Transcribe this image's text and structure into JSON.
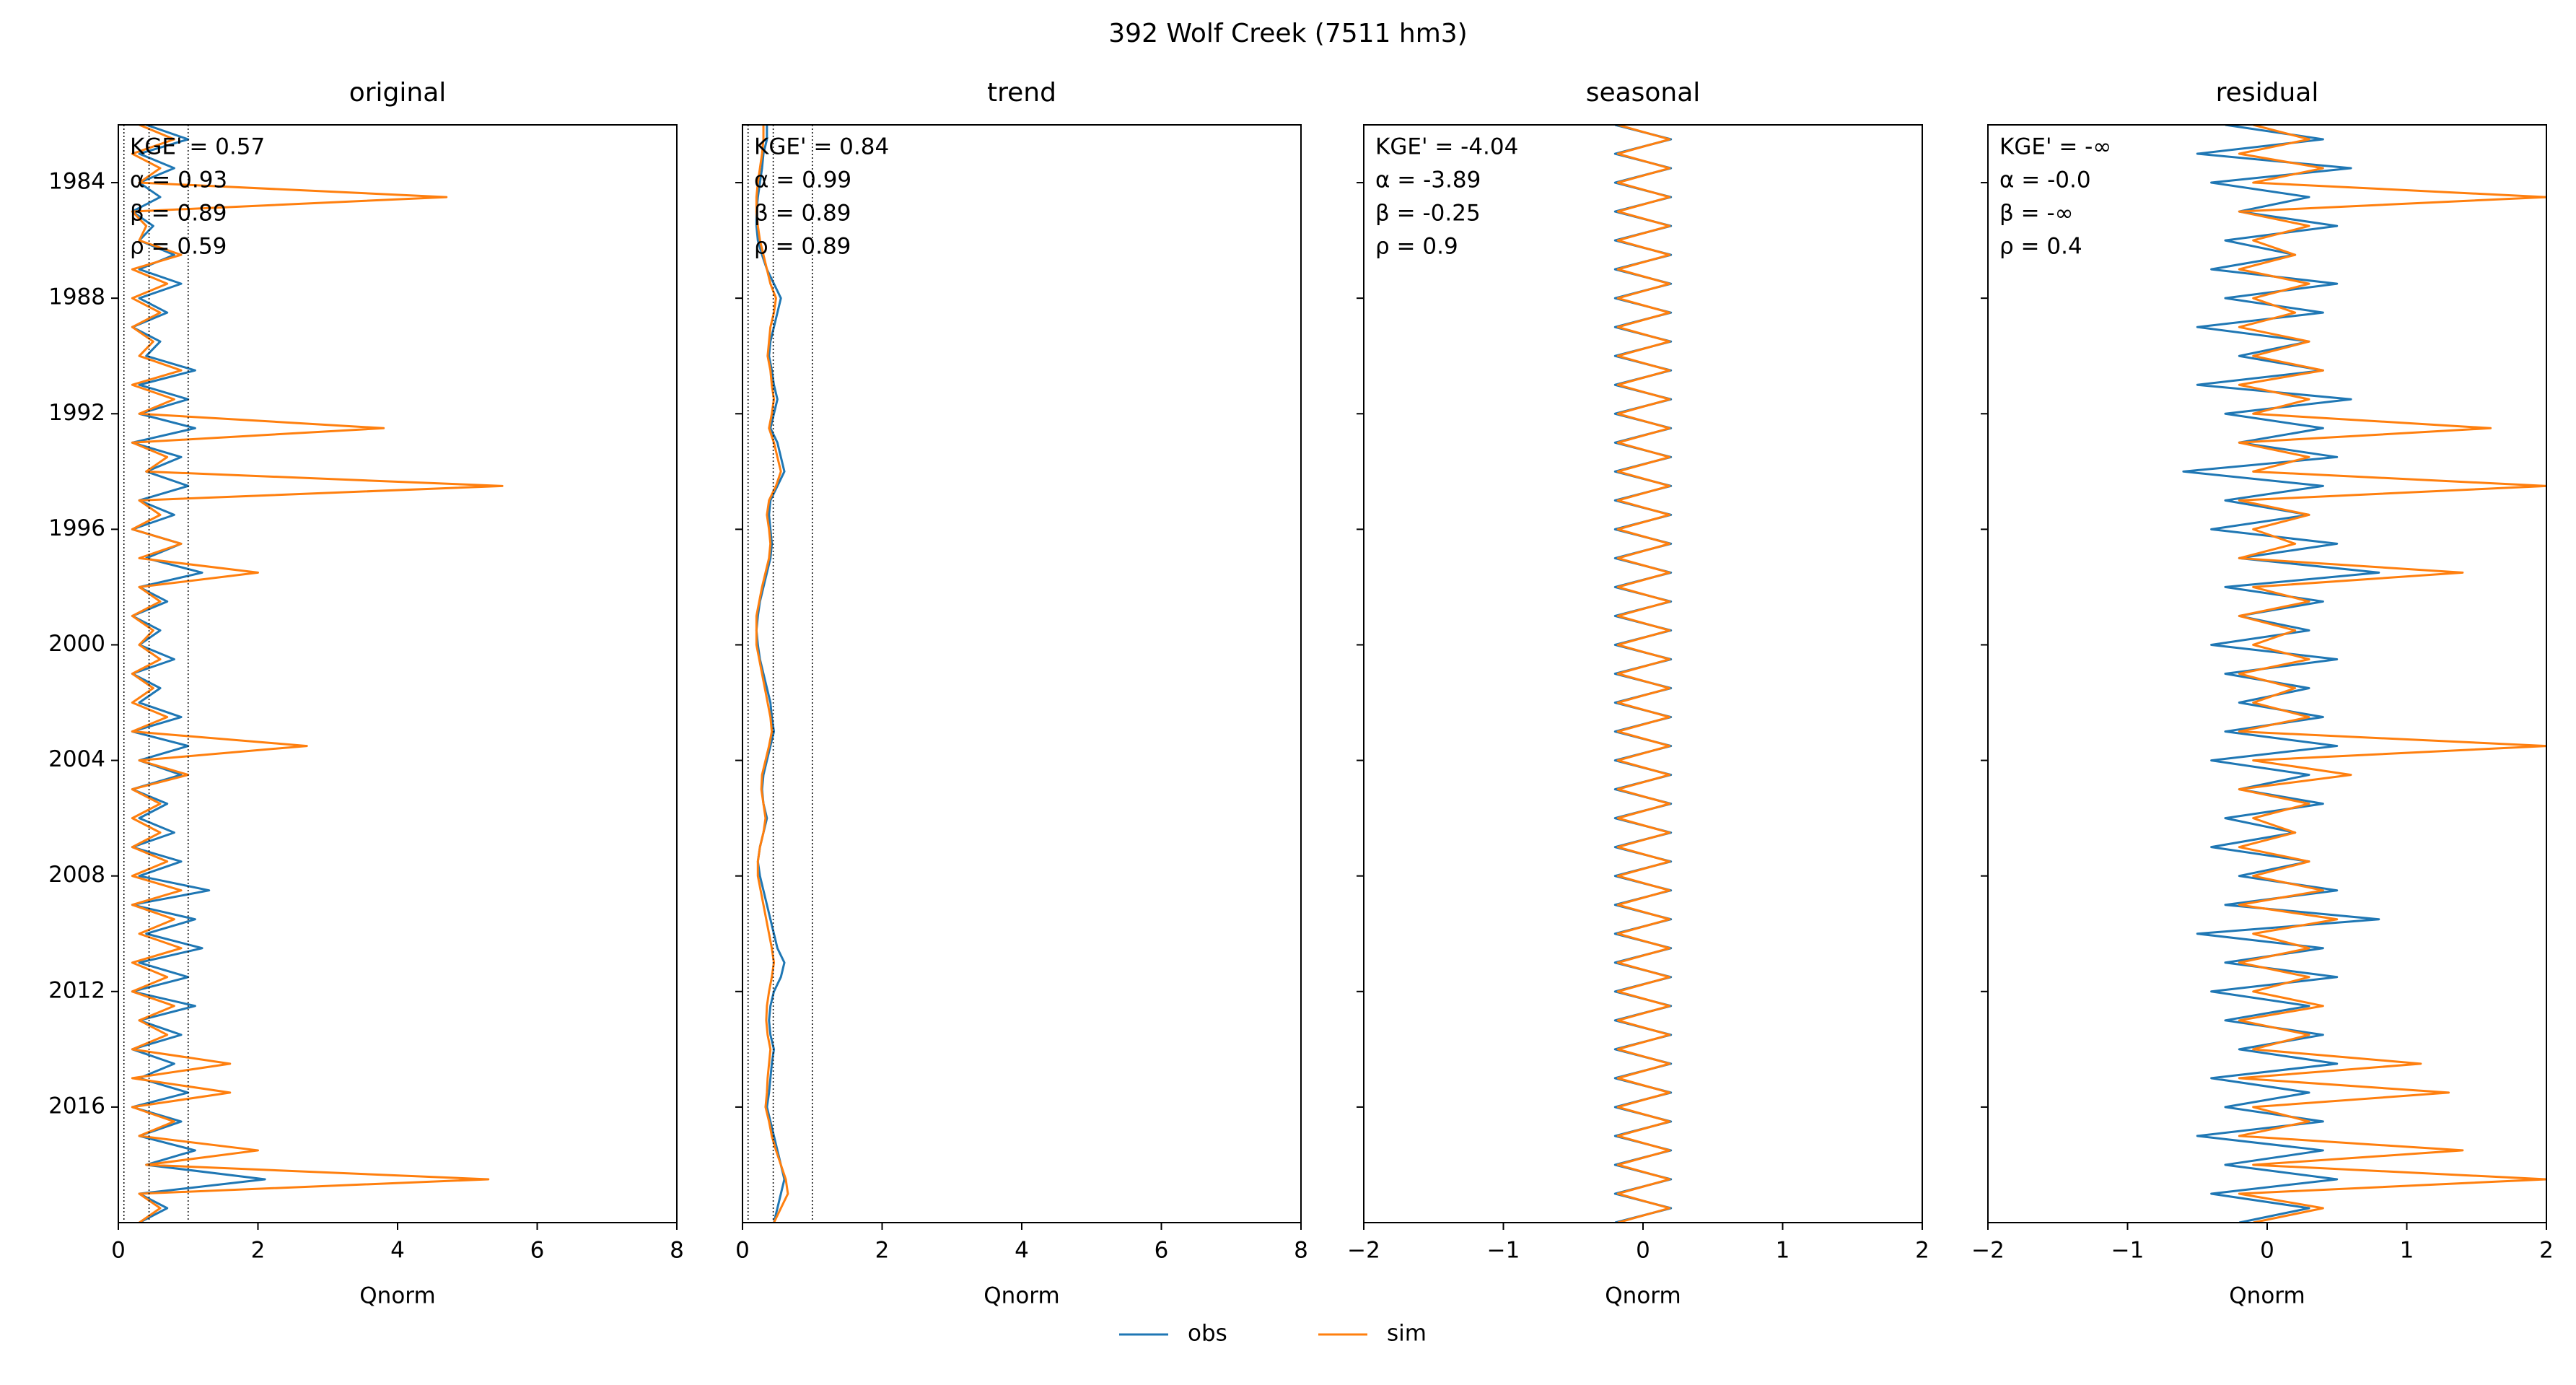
{
  "title": "392  Wolf Creek (7511 hm3)",
  "chart_data": [
    {
      "type": "line",
      "title": "original",
      "xlabel": "Qnorm",
      "xlim": [
        0,
        8
      ],
      "xticks": [
        0,
        2,
        4,
        6,
        8
      ],
      "ylim": [
        2020,
        1982
      ],
      "yticks": [
        1984,
        1988,
        1992,
        1996,
        2000,
        2004,
        2008,
        2012,
        2016
      ],
      "vlines": [
        0.08,
        0.44,
        1.0
      ],
      "annotations": [
        "KGE' = 0.57",
        "α = 0.93",
        "β = 0.89",
        "ρ = 0.59"
      ],
      "x": [
        1982,
        1982.5,
        1983,
        1983.5,
        1984,
        1984.5,
        1985,
        1985.5,
        1986,
        1986.5,
        1987,
        1987.5,
        1988,
        1988.5,
        1989,
        1989.5,
        1990,
        1990.5,
        1991,
        1991.5,
        1992,
        1992.5,
        1993,
        1993.5,
        1994,
        1994.5,
        1995,
        1995.5,
        1996,
        1996.5,
        1997,
        1997.5,
        1998,
        1998.5,
        1999,
        1999.5,
        2000,
        2000.5,
        2001,
        2001.5,
        2002,
        2002.5,
        2003,
        2003.5,
        2004,
        2004.5,
        2005,
        2005.5,
        2006,
        2006.5,
        2007,
        2007.5,
        2008,
        2008.5,
        2009,
        2009.5,
        2010,
        2010.5,
        2011,
        2011.5,
        2012,
        2012.5,
        2013,
        2013.5,
        2014,
        2014.5,
        2015,
        2015.5,
        2016,
        2016.5,
        2017,
        2017.5,
        2018,
        2018.5,
        2019,
        2019.5,
        2020
      ],
      "series": [
        {
          "name": "obs",
          "color": "#1f77b4",
          "values": [
            0.4,
            1.0,
            0.3,
            0.8,
            0.3,
            0.6,
            0.2,
            0.5,
            0.3,
            0.8,
            0.3,
            0.9,
            0.3,
            0.7,
            0.2,
            0.6,
            0.4,
            1.1,
            0.3,
            1.0,
            0.3,
            1.1,
            0.2,
            0.9,
            0.4,
            1.0,
            0.3,
            0.8,
            0.2,
            0.9,
            0.4,
            1.2,
            0.3,
            0.7,
            0.2,
            0.6,
            0.3,
            0.8,
            0.2,
            0.6,
            0.3,
            0.9,
            0.2,
            1.0,
            0.3,
            0.9,
            0.2,
            0.7,
            0.3,
            0.8,
            0.2,
            0.9,
            0.3,
            1.3,
            0.2,
            1.1,
            0.4,
            1.2,
            0.3,
            1.0,
            0.2,
            1.1,
            0.3,
            0.9,
            0.2,
            0.8,
            0.3,
            1.0,
            0.2,
            0.9,
            0.3,
            1.1,
            0.4,
            2.1,
            0.3,
            0.7,
            0.3
          ]
        },
        {
          "name": "sim",
          "color": "#ff7f0e",
          "values": [
            0.3,
            0.8,
            0.2,
            0.6,
            0.3,
            4.7,
            0.2,
            0.4,
            0.3,
            0.9,
            0.2,
            0.7,
            0.2,
            0.6,
            0.2,
            0.5,
            0.3,
            0.9,
            0.2,
            0.8,
            0.3,
            3.8,
            0.2,
            0.7,
            0.4,
            5.5,
            0.3,
            0.6,
            0.2,
            0.9,
            0.3,
            2.0,
            0.3,
            0.6,
            0.2,
            0.5,
            0.3,
            0.6,
            0.2,
            0.5,
            0.2,
            0.7,
            0.2,
            2.7,
            0.3,
            1.0,
            0.2,
            0.6,
            0.2,
            0.6,
            0.2,
            0.7,
            0.2,
            0.9,
            0.2,
            0.8,
            0.3,
            0.9,
            0.2,
            0.7,
            0.2,
            0.8,
            0.3,
            0.7,
            0.2,
            1.6,
            0.2,
            1.6,
            0.2,
            0.8,
            0.3,
            2.0,
            0.4,
            5.3,
            0.3,
            0.6,
            0.3
          ]
        }
      ]
    },
    {
      "type": "line",
      "title": "trend",
      "xlabel": "Qnorm",
      "xlim": [
        0,
        8
      ],
      "xticks": [
        0,
        2,
        4,
        6,
        8
      ],
      "vlines": [
        0.08,
        0.44,
        1.0
      ],
      "annotations": [
        "KGE' = 0.84",
        "α = 0.99",
        "β = 0.89",
        "ρ = 0.89"
      ],
      "x": [
        1982,
        1982.5,
        1983,
        1983.5,
        1984,
        1984.5,
        1985,
        1985.5,
        1986,
        1986.5,
        1987,
        1987.5,
        1988,
        1988.5,
        1989,
        1989.5,
        1990,
        1990.5,
        1991,
        1991.5,
        1992,
        1992.5,
        1993,
        1993.5,
        1994,
        1994.5,
        1995,
        1995.5,
        1996,
        1996.5,
        1997,
        1997.5,
        1998,
        1998.5,
        1999,
        1999.5,
        2000,
        2000.5,
        2001,
        2001.5,
        2002,
        2002.5,
        2003,
        2003.5,
        2004,
        2004.5,
        2005,
        2005.5,
        2006,
        2006.5,
        2007,
        2007.5,
        2008,
        2008.5,
        2009,
        2009.5,
        2010,
        2010.5,
        2011,
        2011.5,
        2012,
        2012.5,
        2013,
        2013.5,
        2014,
        2014.5,
        2015,
        2015.5,
        2016,
        2016.5,
        2017,
        2017.5,
        2018,
        2018.5,
        2019,
        2019.5,
        2020
      ],
      "series": [
        {
          "name": "obs",
          "color": "#1f77b4",
          "values": [
            0.35,
            0.35,
            0.3,
            0.28,
            0.25,
            0.22,
            0.2,
            0.2,
            0.22,
            0.28,
            0.35,
            0.45,
            0.55,
            0.5,
            0.45,
            0.4,
            0.38,
            0.42,
            0.45,
            0.5,
            0.45,
            0.4,
            0.5,
            0.55,
            0.6,
            0.5,
            0.4,
            0.38,
            0.4,
            0.42,
            0.4,
            0.35,
            0.3,
            0.25,
            0.22,
            0.2,
            0.22,
            0.25,
            0.3,
            0.35,
            0.4,
            0.42,
            0.45,
            0.4,
            0.35,
            0.3,
            0.28,
            0.3,
            0.35,
            0.3,
            0.25,
            0.22,
            0.25,
            0.3,
            0.35,
            0.4,
            0.45,
            0.5,
            0.6,
            0.55,
            0.45,
            0.4,
            0.38,
            0.4,
            0.45,
            0.42,
            0.4,
            0.38,
            0.35,
            0.4,
            0.45,
            0.5,
            0.55,
            0.6,
            0.55,
            0.5,
            0.45
          ]
        },
        {
          "name": "sim",
          "color": "#ff7f0e",
          "values": [
            0.3,
            0.3,
            0.28,
            0.25,
            0.22,
            0.2,
            0.2,
            0.22,
            0.25,
            0.3,
            0.35,
            0.4,
            0.48,
            0.45,
            0.4,
            0.38,
            0.36,
            0.4,
            0.42,
            0.45,
            0.42,
            0.38,
            0.45,
            0.5,
            0.55,
            0.48,
            0.38,
            0.35,
            0.38,
            0.4,
            0.38,
            0.33,
            0.28,
            0.24,
            0.2,
            0.2,
            0.2,
            0.24,
            0.28,
            0.32,
            0.36,
            0.4,
            0.42,
            0.38,
            0.33,
            0.28,
            0.27,
            0.3,
            0.33,
            0.3,
            0.25,
            0.22,
            0.22,
            0.26,
            0.3,
            0.34,
            0.38,
            0.42,
            0.45,
            0.42,
            0.38,
            0.35,
            0.34,
            0.36,
            0.4,
            0.38,
            0.36,
            0.35,
            0.33,
            0.38,
            0.42,
            0.48,
            0.55,
            0.62,
            0.65,
            0.55,
            0.45
          ]
        }
      ]
    },
    {
      "type": "line",
      "title": "seasonal",
      "xlabel": "Qnorm",
      "xlim": [
        -2,
        2
      ],
      "xticks": [
        {
          "value": -2,
          "label": "−2"
        },
        {
          "value": -1,
          "label": "−1"
        },
        0,
        1,
        2
      ],
      "annotations": [
        "KGE' = -4.04",
        "α = -3.89",
        "β = -0.25",
        "ρ = 0.9"
      ],
      "x": [
        1982,
        1982.5,
        1983,
        1983.5,
        1984,
        1984.5,
        1985,
        1985.5,
        1986,
        1986.5,
        1987,
        1987.5,
        1988,
        1988.5,
        1989,
        1989.5,
        1990,
        1990.5,
        1991,
        1991.5,
        1992,
        1992.5,
        1993,
        1993.5,
        1994,
        1994.5,
        1995,
        1995.5,
        1996,
        1996.5,
        1997,
        1997.5,
        1998,
        1998.5,
        1999,
        1999.5,
        2000,
        2000.5,
        2001,
        2001.5,
        2002,
        2002.5,
        2003,
        2003.5,
        2004,
        2004.5,
        2005,
        2005.5,
        2006,
        2006.5,
        2007,
        2007.5,
        2008,
        2008.5,
        2009,
        2009.5,
        2010,
        2010.5,
        2011,
        2011.5,
        2012,
        2012.5,
        2013,
        2013.5,
        2014,
        2014.5,
        2015,
        2015.5,
        2016,
        2016.5,
        2017,
        2017.5,
        2018,
        2018.5,
        2019,
        2019.5,
        2020
      ],
      "series": [
        {
          "name": "obs",
          "color": "#1f77b4",
          "values": [
            -0.2,
            0.2,
            -0.2,
            0.2,
            -0.2,
            0.2,
            -0.2,
            0.2,
            -0.2,
            0.2,
            -0.2,
            0.2,
            -0.2,
            0.2,
            -0.2,
            0.2,
            -0.2,
            0.2,
            -0.2,
            0.2,
            -0.2,
            0.2,
            -0.2,
            0.2,
            -0.2,
            0.2,
            -0.2,
            0.2,
            -0.2,
            0.2,
            -0.2,
            0.2,
            -0.2,
            0.2,
            -0.2,
            0.2,
            -0.2,
            0.2,
            -0.2,
            0.2,
            -0.2,
            0.2,
            -0.2,
            0.2,
            -0.2,
            0.2,
            -0.2,
            0.2,
            -0.2,
            0.2,
            -0.2,
            0.2,
            -0.2,
            0.2,
            -0.2,
            0.2,
            -0.2,
            0.2,
            -0.2,
            0.2,
            -0.2,
            0.2,
            -0.2,
            0.2,
            -0.2,
            0.2,
            -0.2,
            0.2,
            -0.2,
            0.2,
            -0.2,
            0.2,
            -0.2,
            0.2,
            -0.2,
            0.2,
            -0.2
          ]
        },
        {
          "name": "sim",
          "color": "#ff7f0e",
          "values": [
            -0.18,
            0.19,
            -0.18,
            0.19,
            -0.18,
            0.19,
            -0.18,
            0.19,
            -0.18,
            0.19,
            -0.18,
            0.19,
            -0.18,
            0.19,
            -0.18,
            0.19,
            -0.18,
            0.19,
            -0.18,
            0.19,
            -0.18,
            0.19,
            -0.18,
            0.19,
            -0.18,
            0.19,
            -0.18,
            0.19,
            -0.18,
            0.19,
            -0.18,
            0.19,
            -0.18,
            0.19,
            -0.18,
            0.19,
            -0.18,
            0.19,
            -0.18,
            0.19,
            -0.18,
            0.19,
            -0.18,
            0.19,
            -0.18,
            0.19,
            -0.18,
            0.19,
            -0.18,
            0.19,
            -0.18,
            0.19,
            -0.18,
            0.19,
            -0.18,
            0.19,
            -0.18,
            0.19,
            -0.18,
            0.19,
            -0.18,
            0.19,
            -0.18,
            0.19,
            -0.18,
            0.19,
            -0.18,
            0.19,
            -0.18,
            0.19,
            -0.18,
            0.19,
            -0.18,
            0.19,
            -0.18,
            0.19,
            -0.18
          ]
        }
      ]
    },
    {
      "type": "line",
      "title": "residual",
      "xlabel": "Qnorm",
      "xlim": [
        -2,
        2
      ],
      "xticks": [
        {
          "value": -2,
          "label": "−2"
        },
        {
          "value": -1,
          "label": "−1"
        },
        0,
        1,
        2
      ],
      "annotations": [
        "KGE' = -∞",
        "α = -0.0",
        "β = -∞",
        "ρ = 0.4"
      ],
      "x": [
        1982,
        1982.5,
        1983,
        1983.5,
        1984,
        1984.5,
        1985,
        1985.5,
        1986,
        1986.5,
        1987,
        1987.5,
        1988,
        1988.5,
        1989,
        1989.5,
        1990,
        1990.5,
        1991,
        1991.5,
        1992,
        1992.5,
        1993,
        1993.5,
        1994,
        1994.5,
        1995,
        1995.5,
        1996,
        1996.5,
        1997,
        1997.5,
        1998,
        1998.5,
        1999,
        1999.5,
        2000,
        2000.5,
        2001,
        2001.5,
        2002,
        2002.5,
        2003,
        2003.5,
        2004,
        2004.5,
        2005,
        2005.5,
        2006,
        2006.5,
        2007,
        2007.5,
        2008,
        2008.5,
        2009,
        2009.5,
        2010,
        2010.5,
        2011,
        2011.5,
        2012,
        2012.5,
        2013,
        2013.5,
        2014,
        2014.5,
        2015,
        2015.5,
        2016,
        2016.5,
        2017,
        2017.5,
        2018,
        2018.5,
        2019,
        2019.5,
        2020
      ],
      "series": [
        {
          "name": "obs",
          "color": "#1f77b4",
          "values": [
            -0.3,
            0.4,
            -0.5,
            0.6,
            -0.4,
            0.3,
            -0.2,
            0.5,
            -0.3,
            0.2,
            -0.4,
            0.5,
            -0.3,
            0.4,
            -0.5,
            0.3,
            -0.2,
            0.4,
            -0.5,
            0.6,
            -0.3,
            0.4,
            -0.2,
            0.5,
            -0.6,
            0.4,
            -0.3,
            0.3,
            -0.4,
            0.5,
            -0.2,
            0.8,
            -0.3,
            0.4,
            -0.2,
            0.3,
            -0.4,
            0.5,
            -0.3,
            0.3,
            -0.2,
            0.4,
            -0.3,
            0.5,
            -0.4,
            0.3,
            -0.2,
            0.4,
            -0.3,
            0.2,
            -0.4,
            0.3,
            -0.2,
            0.5,
            -0.3,
            0.8,
            -0.5,
            0.4,
            -0.3,
            0.5,
            -0.4,
            0.3,
            -0.3,
            0.4,
            -0.2,
            0.5,
            -0.4,
            0.3,
            -0.3,
            0.4,
            -0.5,
            0.4,
            -0.3,
            0.5,
            -0.4,
            0.3,
            -0.2
          ]
        },
        {
          "name": "sim",
          "color": "#ff7f0e",
          "values": [
            -0.1,
            0.3,
            -0.2,
            0.4,
            -0.1,
            2.0,
            -0.2,
            0.3,
            -0.1,
            0.2,
            -0.2,
            0.3,
            -0.1,
            0.2,
            -0.2,
            0.3,
            -0.1,
            0.4,
            -0.2,
            0.3,
            -0.1,
            1.6,
            -0.2,
            0.3,
            -0.1,
            2.0,
            -0.2,
            0.3,
            -0.1,
            0.2,
            -0.2,
            1.4,
            -0.1,
            0.3,
            -0.2,
            0.2,
            -0.1,
            0.3,
            -0.2,
            0.2,
            -0.1,
            0.3,
            -0.2,
            2.0,
            -0.1,
            0.6,
            -0.2,
            0.3,
            -0.1,
            0.2,
            -0.2,
            0.3,
            -0.1,
            0.4,
            -0.2,
            0.5,
            -0.1,
            0.3,
            -0.2,
            0.3,
            -0.1,
            0.4,
            -0.2,
            0.3,
            -0.1,
            1.1,
            -0.2,
            1.3,
            -0.1,
            0.3,
            -0.2,
            1.4,
            -0.1,
            2.0,
            -0.2,
            0.4,
            -0.1
          ]
        }
      ]
    }
  ]
}
